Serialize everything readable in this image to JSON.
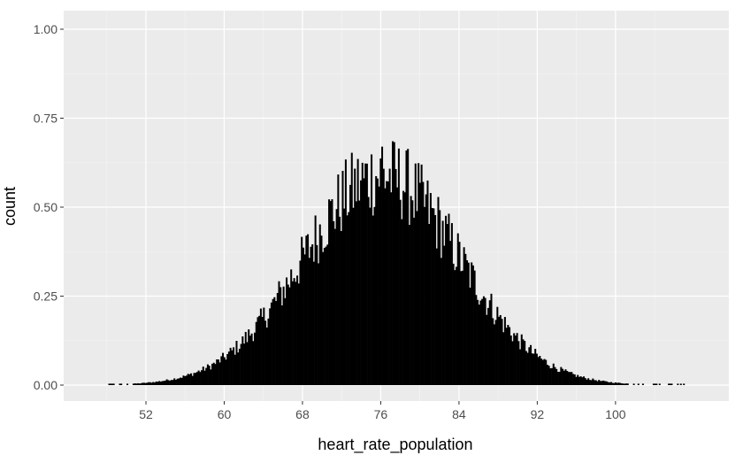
{
  "chart_data": {
    "type": "histogram",
    "title": "",
    "xlabel": "heart_rate_population",
    "ylabel": "count",
    "xlim": [
      45,
      110
    ],
    "ylim": [
      0,
      1.0
    ],
    "x_ticks": [
      52,
      60,
      68,
      76,
      84,
      92,
      100
    ],
    "x_tick_labels": [
      "52",
      "60",
      "68",
      "76",
      "84",
      "92",
      "100"
    ],
    "y_ticks": [
      0,
      0.25,
      0.5,
      0.75,
      1.0
    ],
    "y_tick_labels": [
      "0.00",
      "0.25",
      "0.50",
      "0.75",
      "1.00"
    ],
    "grid": true,
    "bar_color": "#000000",
    "panel_background": "#ebebeb",
    "grid_color": "#ffffff",
    "distribution": {
      "shape": "approximately normal",
      "center": 76,
      "spread_sd": 8,
      "peak_count": 0.67,
      "peak_x": 76,
      "min_x": 48,
      "max_x": 107
    }
  }
}
